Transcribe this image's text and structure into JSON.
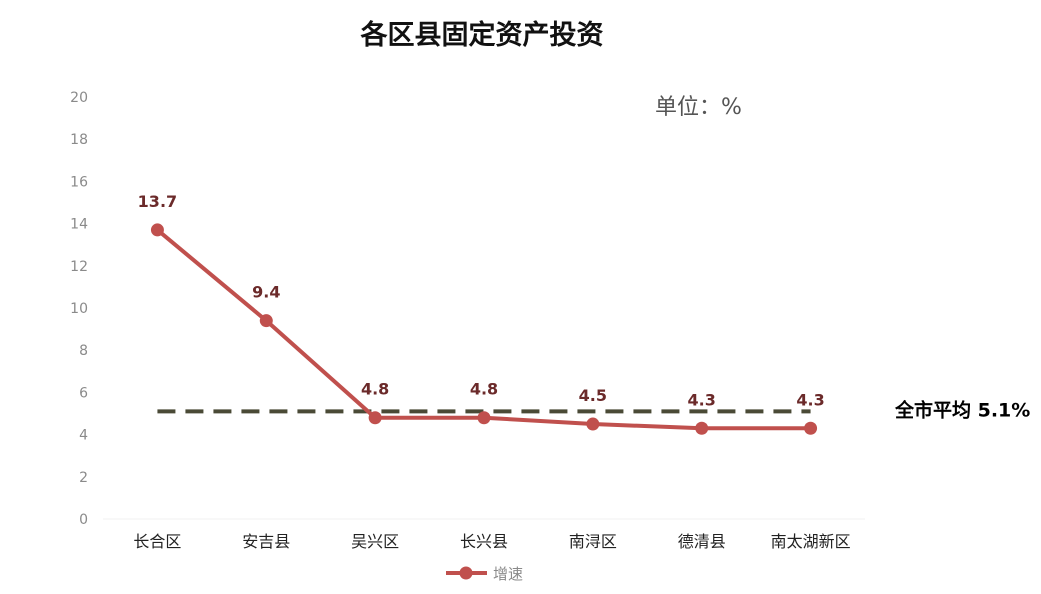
{
  "chart_data": {
    "type": "line",
    "title": "各区县固定资产投资",
    "unit_label": "单位：%",
    "categories": [
      "长合区",
      "安吉县",
      "吴兴区",
      "长兴县",
      "南浔区",
      "德清县",
      "南太湖新区"
    ],
    "series": [
      {
        "name": "增速",
        "values": [
          13.7,
          9.4,
          4.8,
          4.8,
          4.5,
          4.3,
          4.3
        ],
        "data_labels": [
          "13.7",
          "9.4",
          "4.8",
          "4.8",
          "4.5",
          "4.3",
          "4.3"
        ],
        "color": "#c0504d"
      }
    ],
    "reference_line": {
      "value": 5.1,
      "label": "全市平均 5.1%",
      "color": "#4a4a36",
      "style": "dashed"
    },
    "ylim": [
      0,
      20
    ],
    "yticks": [
      "0",
      "2",
      "4",
      "6",
      "8",
      "10",
      "12",
      "14",
      "16",
      "18",
      "20"
    ],
    "xlabel": "",
    "ylabel": "",
    "grid": false,
    "legend_position": "bottom"
  }
}
